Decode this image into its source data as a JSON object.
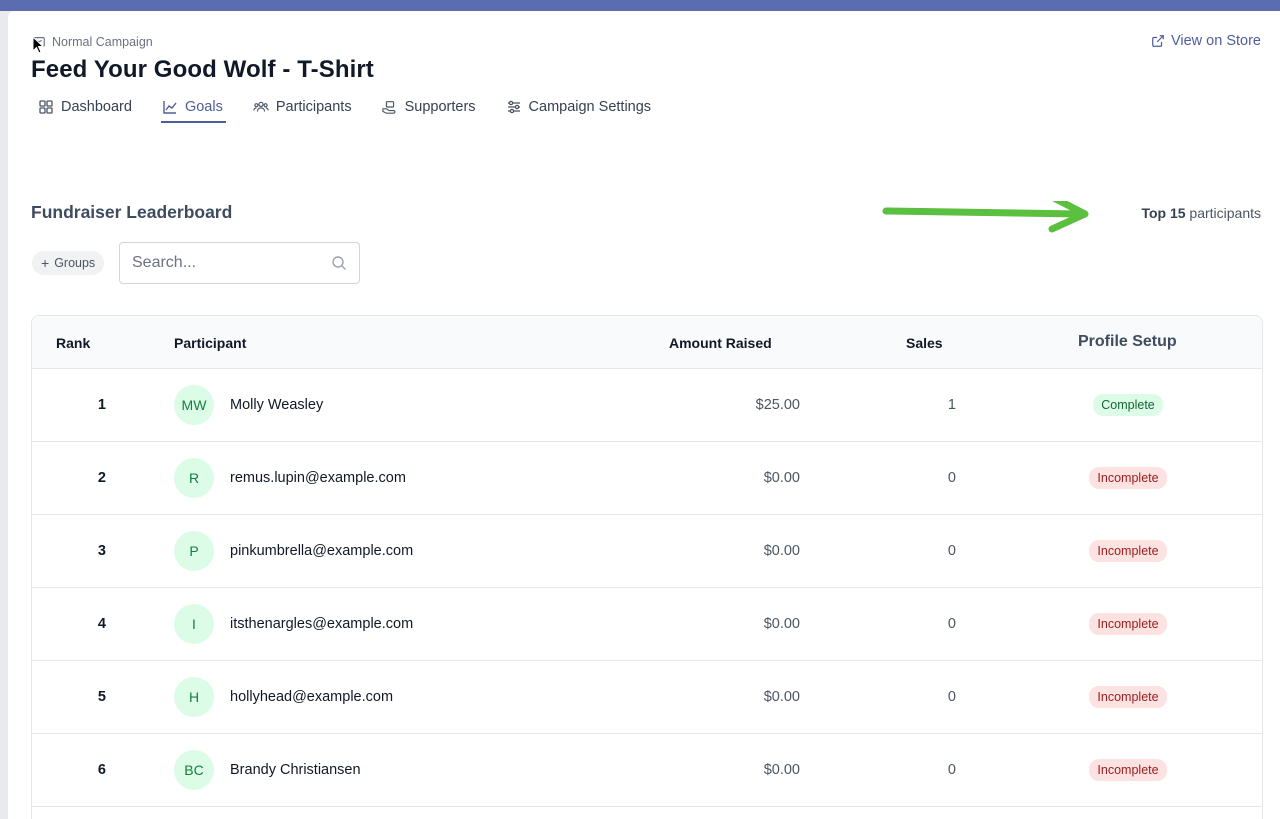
{
  "header": {
    "campaign_type": "Normal Campaign",
    "title": "Feed Your Good Wolf - T-Shirt",
    "view_store": "View on Store"
  },
  "tabs": [
    {
      "label": "Dashboard",
      "icon": "dashboard-grid-icon",
      "active": false
    },
    {
      "label": "Goals",
      "icon": "chart-line-icon",
      "active": true
    },
    {
      "label": "Participants",
      "icon": "users-icon",
      "active": false
    },
    {
      "label": "Supporters",
      "icon": "handshake-icon",
      "active": false
    },
    {
      "label": "Campaign Settings",
      "icon": "sliders-icon",
      "active": false
    }
  ],
  "leaderboard": {
    "title": "Fundraiser Leaderboard",
    "top_count_prefix": "Top 15",
    "top_count_suffix": "participants",
    "groups_label": "Groups",
    "search_placeholder": "Search..."
  },
  "table": {
    "headers": [
      "Rank",
      "Participant",
      "Amount Raised",
      "Sales",
      "Profile Setup"
    ],
    "rows": [
      {
        "rank": "1",
        "initials": "MW",
        "name": "Molly Weasley",
        "amount": "$25.00",
        "sales": "1",
        "status": "Complete"
      },
      {
        "rank": "2",
        "initials": "R",
        "name": "remus.lupin@example.com",
        "amount": "$0.00",
        "sales": "0",
        "status": "Incomplete"
      },
      {
        "rank": "3",
        "initials": "P",
        "name": "pinkumbrella@example.com",
        "amount": "$0.00",
        "sales": "0",
        "status": "Incomplete"
      },
      {
        "rank": "4",
        "initials": "I",
        "name": "itsthenargles@example.com",
        "amount": "$0.00",
        "sales": "0",
        "status": "Incomplete"
      },
      {
        "rank": "5",
        "initials": "H",
        "name": "hollyhead@example.com",
        "amount": "$0.00",
        "sales": "0",
        "status": "Incomplete"
      },
      {
        "rank": "6",
        "initials": "BC",
        "name": "Brandy Christiansen",
        "amount": "$0.00",
        "sales": "0",
        "status": "Incomplete"
      }
    ]
  },
  "colors": {
    "accent": "#4e5e9b",
    "topbar": "#5b6cb0",
    "arrow": "#5bbf3f",
    "complete_bg": "#dcfce7",
    "incomplete_bg": "#fde2e2"
  }
}
